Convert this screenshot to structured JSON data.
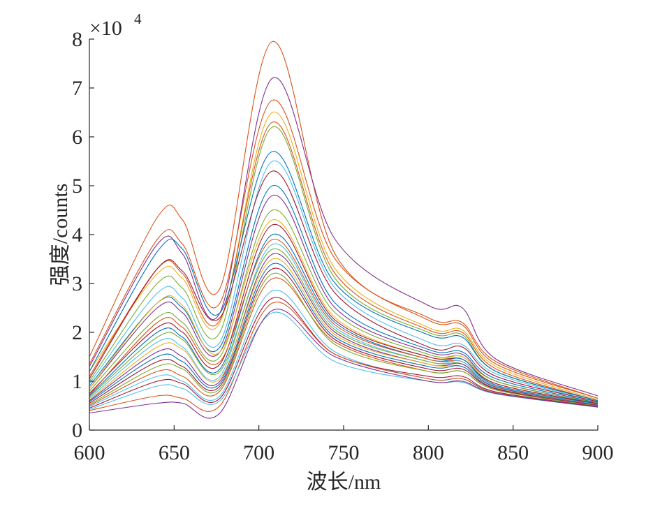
{
  "chart_data": {
    "type": "line",
    "xlabel": "波长/nm",
    "ylabel": "强度/counts",
    "y_exponent_label": "×10",
    "y_exponent": "4",
    "xlim": [
      600,
      900
    ],
    "ylim": [
      0,
      8
    ],
    "x_ticks": [
      "600",
      "650",
      "700",
      "750",
      "800",
      "850",
      "900"
    ],
    "y_ticks": [
      "0",
      "1",
      "2",
      "3",
      "4",
      "5",
      "6",
      "7",
      "8"
    ],
    "x_tick_values": [
      600,
      650,
      700,
      750,
      800,
      850,
      900
    ],
    "y_tick_values": [
      0,
      1,
      2,
      3,
      4,
      5,
      6,
      7,
      8
    ],
    "grid": false,
    "legend": "none",
    "x": [
      600,
      640,
      655,
      677,
      708,
      745,
      800,
      820,
      840,
      900
    ],
    "series": [
      {
        "color": "#D95319",
        "values": [
          1.5,
          4.35,
          4.3,
          2.9,
          7.95,
          3.6,
          2.3,
          2.2,
          1.4,
          0.65
        ]
      },
      {
        "color": "#7E2F8E",
        "values": [
          1.3,
          3.8,
          3.6,
          2.4,
          7.2,
          3.9,
          2.55,
          2.5,
          1.45,
          0.7
        ]
      },
      {
        "color": "#D95319",
        "values": [
          1.35,
          3.9,
          3.8,
          2.6,
          6.75,
          3.5,
          2.25,
          2.15,
          1.35,
          0.65
        ]
      },
      {
        "color": "#EDB120",
        "values": [
          1.2,
          3.2,
          3.1,
          2.2,
          6.5,
          3.3,
          2.1,
          2.05,
          1.3,
          0.62
        ]
      },
      {
        "color": "#D95319",
        "values": [
          1.1,
          3.3,
          3.2,
          2.25,
          6.3,
          3.2,
          2.05,
          2.0,
          1.25,
          0.6
        ]
      },
      {
        "color": "#77AC30",
        "values": [
          1.0,
          3.0,
          2.9,
          2.0,
          6.2,
          3.1,
          2.0,
          1.95,
          1.2,
          0.6
        ]
      },
      {
        "color": "#0072BD",
        "values": [
          1.2,
          3.65,
          3.7,
          2.4,
          5.7,
          3.0,
          1.95,
          1.9,
          1.2,
          0.6
        ]
      },
      {
        "color": "#4DBEEE",
        "values": [
          0.95,
          2.8,
          2.7,
          1.8,
          5.5,
          2.9,
          1.8,
          1.75,
          1.15,
          0.58
        ]
      },
      {
        "color": "#A2142F",
        "values": [
          1.05,
          3.3,
          3.25,
          2.3,
          5.3,
          2.8,
          1.7,
          1.7,
          1.1,
          0.58
        ]
      },
      {
        "color": "#0072BD",
        "values": [
          0.9,
          2.6,
          2.5,
          1.7,
          5.0,
          2.6,
          1.65,
          1.6,
          1.05,
          0.56
        ]
      },
      {
        "color": "#7E2F8E",
        "values": [
          0.85,
          2.5,
          2.4,
          1.6,
          4.8,
          2.5,
          1.6,
          1.55,
          1.0,
          0.55
        ]
      },
      {
        "color": "#77AC30",
        "values": [
          0.8,
          2.3,
          2.2,
          1.5,
          4.5,
          2.4,
          1.55,
          1.5,
          1.0,
          0.55
        ]
      },
      {
        "color": "#EDB120",
        "values": [
          0.85,
          2.6,
          2.55,
          1.6,
          4.3,
          2.3,
          1.5,
          1.5,
          0.95,
          0.54
        ]
      },
      {
        "color": "#A2142F",
        "values": [
          0.75,
          2.1,
          2.0,
          1.35,
          4.2,
          2.25,
          1.5,
          1.45,
          0.95,
          0.54
        ]
      },
      {
        "color": "#0072BD",
        "values": [
          0.7,
          2.0,
          1.9,
          1.25,
          4.0,
          2.2,
          1.45,
          1.45,
          0.92,
          0.53
        ]
      },
      {
        "color": "#D95319",
        "values": [
          0.72,
          2.2,
          2.1,
          1.4,
          3.9,
          2.15,
          1.45,
          1.4,
          0.9,
          0.52
        ]
      },
      {
        "color": "#4DBEEE",
        "values": [
          0.65,
          1.8,
          1.7,
          1.1,
          3.8,
          2.1,
          1.4,
          1.4,
          0.9,
          0.52
        ]
      },
      {
        "color": "#77AC30",
        "values": [
          0.68,
          1.9,
          1.85,
          1.2,
          3.7,
          2.05,
          1.4,
          1.35,
          0.88,
          0.51
        ]
      },
      {
        "color": "#7E2F8E",
        "values": [
          0.6,
          1.6,
          1.5,
          1.0,
          3.6,
          2.0,
          1.35,
          1.35,
          0.88,
          0.51
        ]
      },
      {
        "color": "#EDB120",
        "values": [
          0.62,
          1.7,
          1.65,
          1.05,
          3.5,
          1.95,
          1.35,
          1.3,
          0.86,
          0.5
        ]
      },
      {
        "color": "#0072BD",
        "values": [
          0.58,
          1.5,
          1.4,
          0.95,
          3.4,
          1.9,
          1.3,
          1.3,
          0.85,
          0.5
        ]
      },
      {
        "color": "#A2142F",
        "values": [
          0.55,
          1.4,
          1.3,
          0.9,
          3.3,
          1.85,
          1.25,
          1.25,
          0.84,
          0.5
        ]
      },
      {
        "color": "#D95319",
        "values": [
          0.5,
          1.2,
          1.1,
          0.8,
          3.1,
          1.8,
          1.2,
          1.2,
          0.82,
          0.49
        ]
      },
      {
        "color": "#77AC30",
        "values": [
          0.52,
          1.3,
          1.25,
          0.85,
          3.2,
          1.75,
          1.2,
          1.2,
          0.82,
          0.49
        ]
      },
      {
        "color": "#4DBEEE",
        "values": [
          0.48,
          1.1,
          1.0,
          0.7,
          2.85,
          1.6,
          1.05,
          1.05,
          0.78,
          0.48
        ]
      },
      {
        "color": "#A2142F",
        "values": [
          0.45,
          1.0,
          0.95,
          0.65,
          2.7,
          1.55,
          1.1,
          1.1,
          0.78,
          0.48
        ]
      },
      {
        "color": "#D95319",
        "values": [
          0.4,
          0.7,
          0.65,
          0.5,
          2.6,
          1.55,
          1.05,
          1.05,
          0.76,
          0.47
        ]
      },
      {
        "color": "#4DBEEE",
        "values": [
          0.42,
          0.9,
          0.85,
          0.6,
          2.4,
          1.4,
          1.0,
          0.98,
          0.74,
          0.47
        ]
      },
      {
        "color": "#7E2F8E",
        "values": [
          0.35,
          0.55,
          0.55,
          0.35,
          2.45,
          1.5,
          1.0,
          1.0,
          0.75,
          0.47
        ]
      }
    ]
  }
}
